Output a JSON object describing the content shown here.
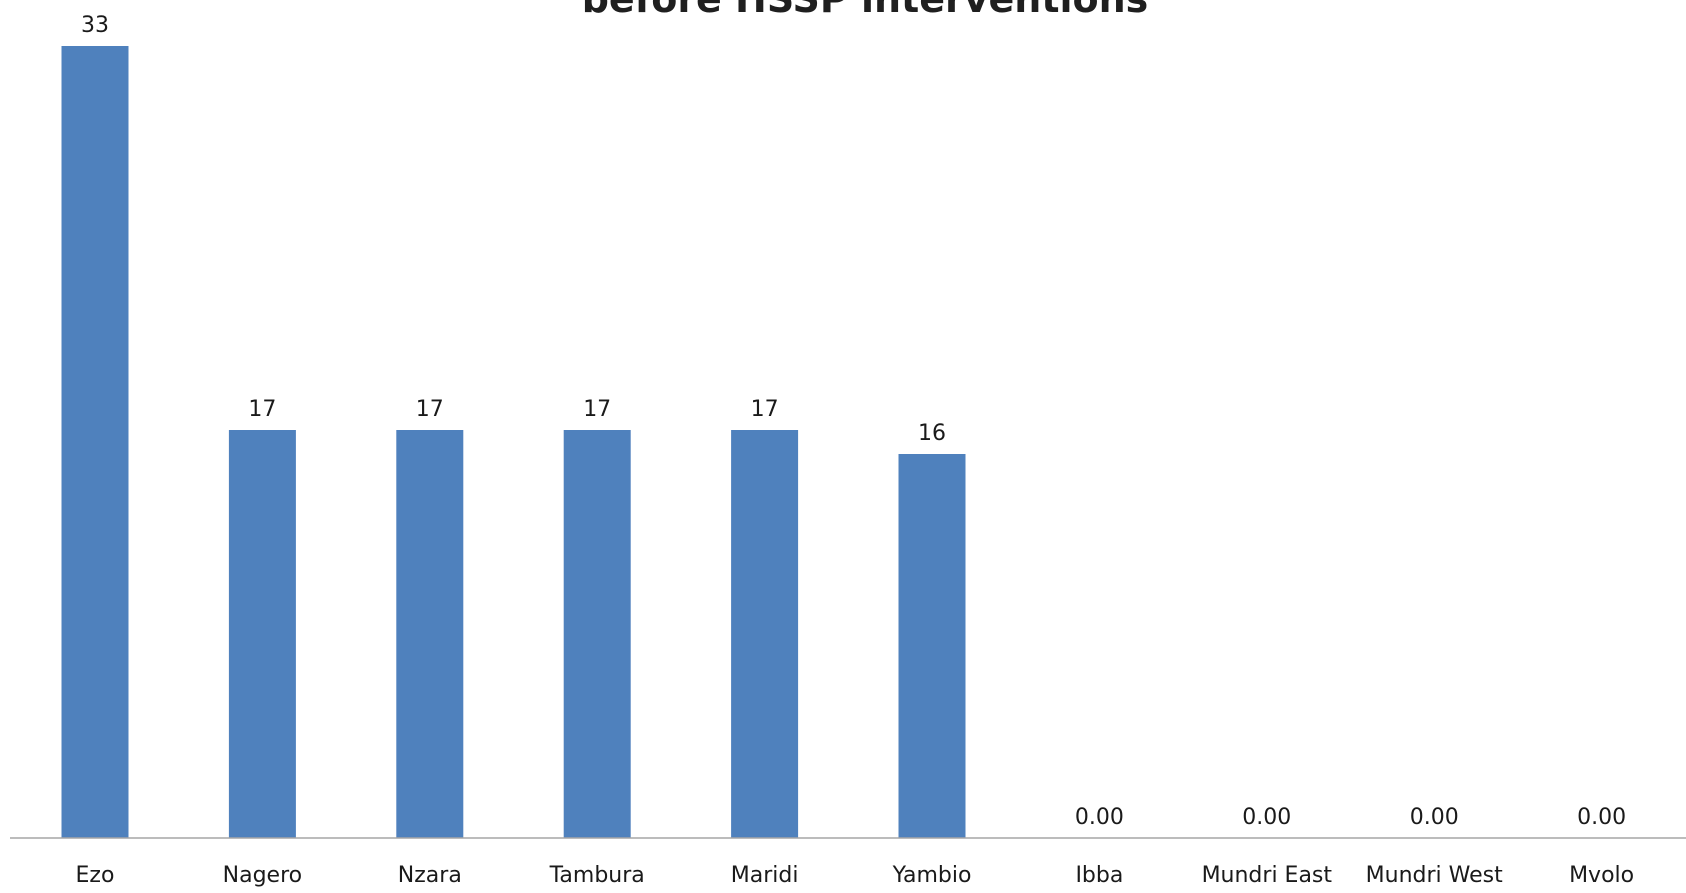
{
  "chart_data": {
    "type": "bar",
    "title": "before HSSP interventions",
    "xlabel": "",
    "ylabel": "",
    "categories": [
      "Ezo",
      "Nagero",
      "Nzara",
      "Tambura",
      "Maridi",
      "Yambio",
      "Ibba",
      "Mundri East",
      "Mundri West",
      "Mvolo"
    ],
    "values": [
      33,
      17,
      17,
      17,
      17,
      16,
      0,
      0,
      0,
      0
    ],
    "data_labels": [
      "33",
      "17",
      "17",
      "17",
      "17",
      "16",
      "0.00",
      "0.00",
      "0.00",
      "0.00"
    ],
    "ylim": [
      0,
      33
    ],
    "grid": false,
    "legend": "none",
    "bar_color": "#4f81bd",
    "axis_color": "#a6a6a6"
  }
}
